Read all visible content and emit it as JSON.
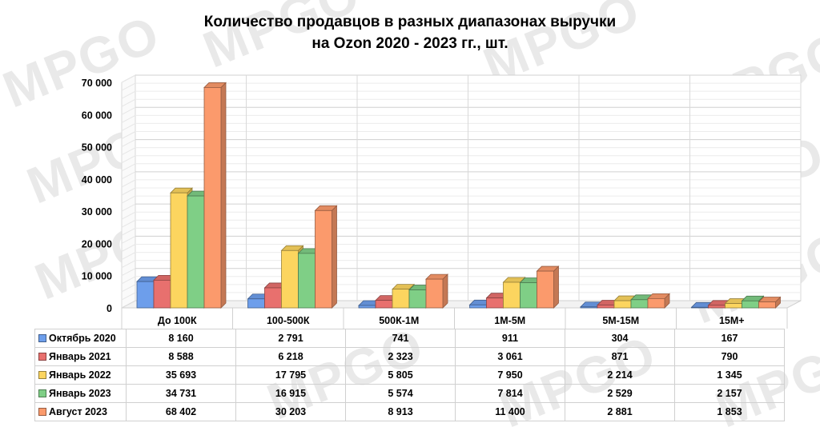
{
  "title_line1": "Количество продавцов в разных диапазонах выручки",
  "title_line2": "на Ozon 2020 - 2023 гг., шт.",
  "watermark": "MPGO",
  "chart_data": {
    "type": "bar",
    "title": "Количество продавцов в разных диапазонах выручки на Ozon 2020 - 2023 гг., шт.",
    "categories": [
      "До 100К",
      "100-500К",
      "500К-1М",
      "1М-5М",
      "5М-15М",
      "15М+"
    ],
    "ylim": [
      0,
      70000
    ],
    "yticks": [
      "0",
      "10 000",
      "20 000",
      "30 000",
      "40 000",
      "50 000",
      "60 000",
      "70 000"
    ],
    "grid": true,
    "legend": "data-table",
    "series": [
      {
        "name": "Октябрь 2020",
        "color": "#6d9eeb",
        "values": [
          8160,
          2791,
          741,
          911,
          304,
          167
        ],
        "labels": [
          "8 160",
          "2 791",
          "741",
          "911",
          "304",
          "167"
        ]
      },
      {
        "name": "Январь 2021",
        "color": "#e8706e",
        "values": [
          8588,
          6218,
          2323,
          3061,
          871,
          790
        ],
        "labels": [
          "8 588",
          "6 218",
          "2 323",
          "3 061",
          "871",
          "790"
        ]
      },
      {
        "name": "Январь 2022",
        "color": "#fcd55f",
        "values": [
          35693,
          17795,
          5805,
          7950,
          2214,
          1345
        ],
        "labels": [
          "35 693",
          "17 795",
          "5 805",
          "7 950",
          "2 214",
          "1 345"
        ]
      },
      {
        "name": "Январь 2023",
        "color": "#7fcf86",
        "values": [
          34731,
          16915,
          5574,
          7814,
          2529,
          2157
        ],
        "labels": [
          "34 731",
          "16 915",
          "5 574",
          "7 814",
          "2 529",
          "2 157"
        ]
      },
      {
        "name": "Август 2023",
        "color": "#fb9a6c",
        "values": [
          68402,
          30203,
          8913,
          11400,
          2881,
          1853
        ],
        "labels": [
          "68 402",
          "30 203",
          "8 913",
          "11 400",
          "2 881",
          "1 853"
        ]
      }
    ]
  }
}
